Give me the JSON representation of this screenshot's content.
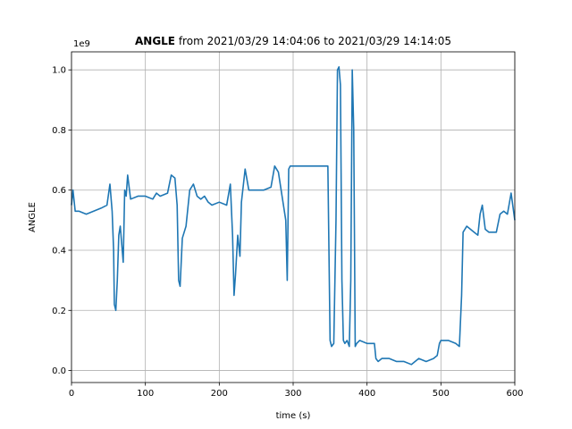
{
  "chart_data": {
    "type": "line",
    "title_bold": "ANGLE",
    "title_rest": " from 2021/03/29 14:04:06 to 2021/03/29 14:14:05",
    "xlabel": "time (s)",
    "ylabel": "ANGLE",
    "y_offset_text": "1e9",
    "xlim": [
      0,
      600
    ],
    "ylim": [
      -0.04,
      1.06
    ],
    "x_ticks": [
      0,
      100,
      200,
      300,
      400,
      500,
      600
    ],
    "y_ticks": [
      0.0,
      0.2,
      0.4,
      0.6,
      0.8,
      1.0
    ],
    "x_tick_labels": [
      "0",
      "100",
      "200",
      "300",
      "400",
      "500",
      "600"
    ],
    "y_tick_labels": [
      "0.0",
      "0.2",
      "0.4",
      "0.6",
      "0.8",
      "1.0"
    ],
    "grid": true,
    "line_color": "#1f77b4",
    "series": [
      {
        "x": [
          0,
          2,
          5,
          10,
          20,
          30,
          40,
          48,
          52,
          55,
          57,
          58,
          60,
          62,
          64,
          66,
          68,
          70,
          72,
          74,
          76,
          80,
          90,
          100,
          110,
          115,
          120,
          130,
          135,
          140,
          143,
          145,
          147,
          150,
          155,
          160,
          165,
          170,
          175,
          180,
          185,
          190,
          200,
          210,
          215,
          218,
          220,
          222,
          225,
          228,
          230,
          235,
          240,
          245,
          250,
          260,
          270,
          275,
          280,
          285,
          290,
          292,
          294,
          296,
          300,
          310,
          320,
          330,
          340,
          347,
          350,
          352,
          355,
          358,
          360,
          362,
          364,
          366,
          368,
          370,
          373,
          376,
          378,
          380,
          382,
          384,
          386,
          390,
          400,
          410,
          412,
          415,
          420,
          430,
          440,
          450,
          460,
          470,
          480,
          490,
          495,
          498,
          500,
          510,
          520,
          525,
          528,
          530,
          535,
          540,
          545,
          550,
          553,
          556,
          560,
          565,
          570,
          575,
          580,
          585,
          590,
          595,
          600
        ],
        "y": [
          0.55,
          0.6,
          0.53,
          0.53,
          0.52,
          0.53,
          0.54,
          0.55,
          0.62,
          0.53,
          0.4,
          0.22,
          0.2,
          0.3,
          0.45,
          0.48,
          0.42,
          0.36,
          0.6,
          0.58,
          0.65,
          0.57,
          0.58,
          0.58,
          0.57,
          0.59,
          0.58,
          0.59,
          0.65,
          0.64,
          0.55,
          0.3,
          0.28,
          0.44,
          0.48,
          0.6,
          0.62,
          0.58,
          0.57,
          0.58,
          0.56,
          0.55,
          0.56,
          0.55,
          0.62,
          0.45,
          0.25,
          0.32,
          0.45,
          0.38,
          0.56,
          0.67,
          0.6,
          0.6,
          0.6,
          0.6,
          0.61,
          0.68,
          0.66,
          0.58,
          0.5,
          0.3,
          0.67,
          0.68,
          0.68,
          0.68,
          0.68,
          0.68,
          0.68,
          0.68,
          0.1,
          0.08,
          0.09,
          0.5,
          1.0,
          1.01,
          0.95,
          0.3,
          0.1,
          0.09,
          0.1,
          0.08,
          0.3,
          1.0,
          0.8,
          0.08,
          0.09,
          0.1,
          0.09,
          0.09,
          0.04,
          0.03,
          0.04,
          0.04,
          0.03,
          0.03,
          0.02,
          0.04,
          0.03,
          0.04,
          0.05,
          0.09,
          0.1,
          0.1,
          0.09,
          0.08,
          0.25,
          0.46,
          0.48,
          0.47,
          0.46,
          0.45,
          0.52,
          0.55,
          0.47,
          0.46,
          0.46,
          0.46,
          0.52,
          0.53,
          0.52,
          0.59,
          0.5
        ]
      }
    ]
  }
}
